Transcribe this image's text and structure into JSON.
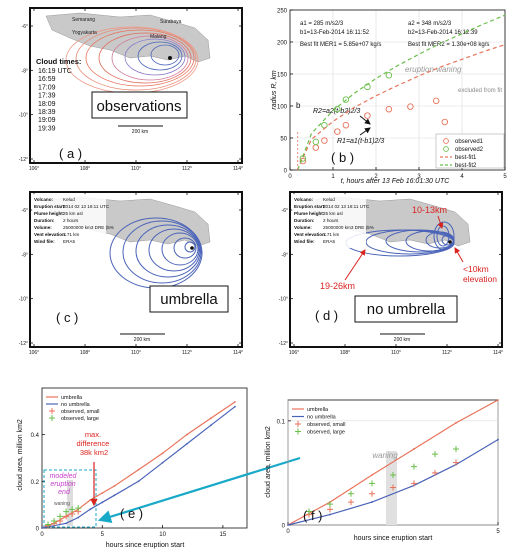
{
  "panels": {
    "a": {
      "label": "( a )",
      "title": "observations",
      "cloud_times_title": "Cloud times:",
      "cloud_times": [
        "16:19 UTC",
        "16:59",
        "17:09",
        "17:39",
        "18:09",
        "18:39",
        "19:09",
        "19:39"
      ],
      "scale": "200 km",
      "lon_ticks": [
        "106°",
        "108°",
        "110°",
        "112°",
        "114°"
      ],
      "lat_ticks": [
        "-6°",
        "-8°",
        "-10°",
        "-12°"
      ],
      "places": [
        "Semarang",
        "Yogyakarta",
        "Surabaya",
        "Malang"
      ]
    },
    "c": {
      "label": "( c )",
      "title": "umbrella",
      "scale": "200 km",
      "lon_ticks": [
        "106°",
        "108°",
        "110°",
        "112°",
        "114°"
      ],
      "lat_ticks": [
        "-6°",
        "-8°",
        "-10°",
        "-12°"
      ],
      "info": [
        {
          "k": "Volcano:",
          "v": "Kelud"
        },
        {
          "k": "Eruption start:",
          "v": "2014 02 13 16:11 UTC"
        },
        {
          "k": "Plume height:",
          "v": "25 km asl"
        },
        {
          "k": "Duration:",
          "v": "2 hours"
        },
        {
          "k": "Volume:",
          "v": "25000000 km3 DRE (5%"
        },
        {
          "k": "Vent elevation:",
          "v": "1.71 km"
        },
        {
          "k": "Wind file:",
          "v": "ERA5"
        }
      ]
    },
    "d": {
      "label": "( d )",
      "title": "no umbrella",
      "scale": "200 km",
      "lon_ticks": [
        "106°",
        "108°",
        "110°",
        "112°",
        "114°"
      ],
      "lat_ticks": [
        "-6°",
        "-8°",
        "-10°",
        "-12°"
      ],
      "annot_top": "10-13km",
      "annot_left": "19-26km",
      "annot_right": "<10km elevation",
      "info": [
        {
          "k": "Volcano:",
          "v": "Kelud"
        },
        {
          "k": "Eruption start:",
          "v": "2014 02 13 16:11 UTC"
        },
        {
          "k": "Plume height:",
          "v": "25 km asl"
        },
        {
          "k": "Duration:",
          "v": "2 hours"
        },
        {
          "k": "Volume:",
          "v": "25000000 km3 DRE (5%"
        },
        {
          "k": "Vent elevation:",
          "v": "1.71 km"
        },
        {
          "k": "Wind file:",
          "v": "ERA5"
        }
      ]
    }
  },
  "chart_data": [
    {
      "id": "b",
      "label": "( b )",
      "type": "scatter",
      "xlabel": "t, hours after 13 Feb 16:01:30 UTC",
      "ylabel": "radius R, km",
      "xlim": [
        0,
        5
      ],
      "ylim": [
        0,
        250
      ],
      "x_ticks": [
        0,
        1,
        2,
        3,
        4,
        5
      ],
      "y_ticks": [
        0,
        50,
        100,
        150,
        200,
        250
      ],
      "grid": true,
      "params_left": [
        "a1 = 285 m/s2/3",
        "b1=13-Feb-2014 16:11:52",
        "Best fit MER1 = 5.85e+07 kg/s"
      ],
      "params_right": [
        "a2 = 348 m/s2/3",
        "b2=13-Feb-2014 16:12:39",
        "Best fit MER2 = 1.30e+08 kg/s"
      ],
      "annotations": {
        "waning": "eruption waning",
        "excluded": "excluded from fit",
        "b_marker": "b",
        "eq_upper": "R2=a2(t-b2)2/3",
        "eq_lower": "R1=a1(t-b1)2/3"
      },
      "legend_position": "bottom-right",
      "series": [
        {
          "name": "observed1",
          "color": "#e8735a",
          "style": "circle",
          "x": [
            0.3,
            0.6,
            0.8,
            1.1,
            1.3,
            1.8,
            2.3,
            2.8,
            3.4,
            3.6
          ],
          "y": [
            14,
            35,
            46,
            60,
            70,
            85,
            95,
            99,
            108,
            75
          ]
        },
        {
          "name": "observed2",
          "color": "#6abf4b",
          "style": "circle",
          "x": [
            0.3,
            0.6,
            0.8,
            1.1,
            1.3,
            1.8,
            2.3
          ],
          "y": [
            18,
            44,
            70,
            95,
            110,
            130,
            148
          ]
        },
        {
          "name": "best-fit1",
          "color": "#e8735a",
          "style": "dashed",
          "x": [
            0.17,
            0.5,
            1,
            1.5,
            2,
            2.5,
            3,
            3.5,
            4,
            4.5,
            5
          ],
          "y": [
            0,
            48,
            76,
            98,
            116,
            132,
            147,
            161,
            173,
            185,
            196
          ]
        },
        {
          "name": "best-fit2",
          "color": "#6abf4b",
          "style": "dashed",
          "x": [
            0.18,
            0.5,
            1,
            1.5,
            2,
            2.5,
            3,
            3.5,
            4,
            4.5,
            5
          ],
          "y": [
            0,
            57,
            93,
            120,
            143,
            163,
            181,
            198,
            213,
            228,
            242
          ]
        }
      ]
    },
    {
      "id": "e",
      "label": "( e )",
      "type": "line",
      "xlabel": "hours since eruption start",
      "ylabel": "cloud area, million km2",
      "xlim": [
        0,
        17
      ],
      "ylim": [
        0,
        0.6
      ],
      "x_ticks": [
        0,
        5,
        10,
        15
      ],
      "y_ticks": [
        0,
        0.2,
        0.4
      ],
      "annotations": {
        "max_diff": "max. difference 38k km2",
        "modeled_end": "modeled eruption end",
        "waning": "waning"
      },
      "legend_position": "top-left",
      "series": [
        {
          "name": "umbrella",
          "color": "#e8735a",
          "style": "line",
          "x": [
            0,
            1,
            2,
            3,
            4,
            5,
            6,
            8,
            10,
            12,
            14,
            16
          ],
          "y": [
            0,
            0.02,
            0.05,
            0.08,
            0.12,
            0.15,
            0.18,
            0.25,
            0.32,
            0.4,
            0.47,
            0.54
          ]
        },
        {
          "name": "no umbrella",
          "color": "#4a63b8",
          "style": "line",
          "x": [
            0,
            1,
            2,
            3,
            4,
            5,
            6,
            8,
            10,
            12,
            14,
            16
          ],
          "y": [
            0,
            0.01,
            0.02,
            0.045,
            0.08,
            0.11,
            0.14,
            0.2,
            0.28,
            0.36,
            0.44,
            0.52
          ]
        },
        {
          "name": "observed, small",
          "color": "#e8735a",
          "style": "plus",
          "x": [
            0.5,
            1,
            1.5,
            2,
            2.5,
            3
          ],
          "y": [
            0.01,
            0.02,
            0.03,
            0.05,
            0.06,
            0.07
          ]
        },
        {
          "name": "observed, large",
          "color": "#6abf4b",
          "style": "plus",
          "x": [
            0.5,
            1,
            1.5,
            2,
            2.5,
            3
          ],
          "y": [
            0.015,
            0.03,
            0.05,
            0.07,
            0.08,
            0.085
          ]
        }
      ]
    },
    {
      "id": "f",
      "label": "( f )",
      "type": "line",
      "xlabel": "hours since eruption start",
      "ylabel": "cloud area, million km2",
      "xlim": [
        0,
        5
      ],
      "ylim": [
        0,
        0.12
      ],
      "x_ticks": [
        0,
        5
      ],
      "y_ticks": [
        0,
        0.1
      ],
      "annotations": {
        "waning": "waning"
      },
      "legend_position": "top-left",
      "series": [
        {
          "name": "umbrella",
          "color": "#e8735a",
          "style": "line",
          "x": [
            0,
            1,
            2,
            3,
            4,
            5
          ],
          "y": [
            0,
            0.022,
            0.048,
            0.073,
            0.098,
            0.12
          ]
        },
        {
          "name": "no umbrella",
          "color": "#4a63b8",
          "style": "line",
          "x": [
            0,
            1,
            2,
            3,
            4,
            5
          ],
          "y": [
            0,
            0.01,
            0.022,
            0.038,
            0.058,
            0.082
          ]
        },
        {
          "name": "observed, small",
          "color": "#e8735a",
          "style": "plus",
          "x": [
            0.5,
            1,
            1.5,
            2,
            2.5,
            3,
            3.5,
            4
          ],
          "y": [
            0.01,
            0.015,
            0.022,
            0.03,
            0.036,
            0.04,
            0.05,
            0.06
          ]
        },
        {
          "name": "observed, large",
          "color": "#6abf4b",
          "style": "plus",
          "x": [
            0.5,
            1,
            1.5,
            2,
            2.5,
            3,
            3.5,
            4
          ],
          "y": [
            0.013,
            0.02,
            0.03,
            0.04,
            0.048,
            0.056,
            0.068,
            0.073
          ]
        }
      ]
    }
  ]
}
